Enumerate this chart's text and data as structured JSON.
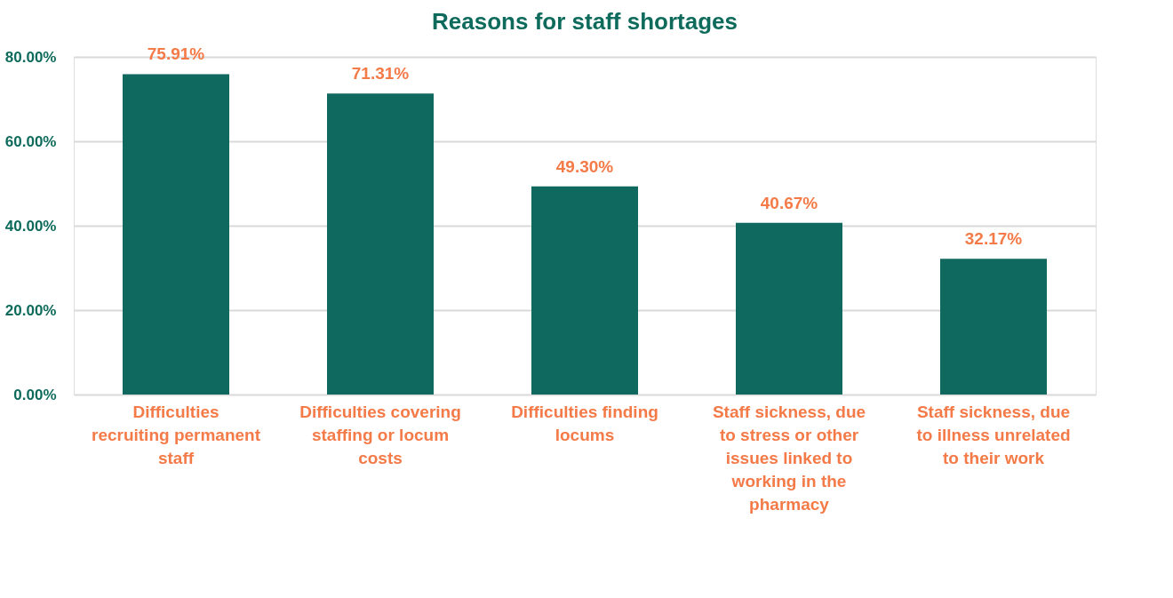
{
  "chart_data": {
    "type": "bar",
    "title": "Reasons for staff shortages",
    "categories": [
      "Difficulties recruiting permanent staff",
      "Difficulties covering staffing or locum costs",
      "Difficulties finding locums",
      "Staff sickness, due to stress or other issues linked to working in the pharmacy",
      "Staff sickness, due to illness unrelated to their work"
    ],
    "values": [
      75.91,
      71.31,
      49.3,
      40.67,
      32.17
    ],
    "value_labels": [
      "75.91%",
      "71.31%",
      "49.30%",
      "40.67%",
      "32.17%"
    ],
    "color": "#10695e",
    "ylim": [
      0,
      80
    ],
    "yticks": [
      {
        "value": 0,
        "label": "0.00%"
      },
      {
        "value": 20,
        "label": "20.00%"
      },
      {
        "value": 40,
        "label": "40.00%"
      },
      {
        "value": 60,
        "label": "60.00%"
      },
      {
        "value": 80,
        "label": "80.00%"
      }
    ],
    "grid": "y"
  }
}
